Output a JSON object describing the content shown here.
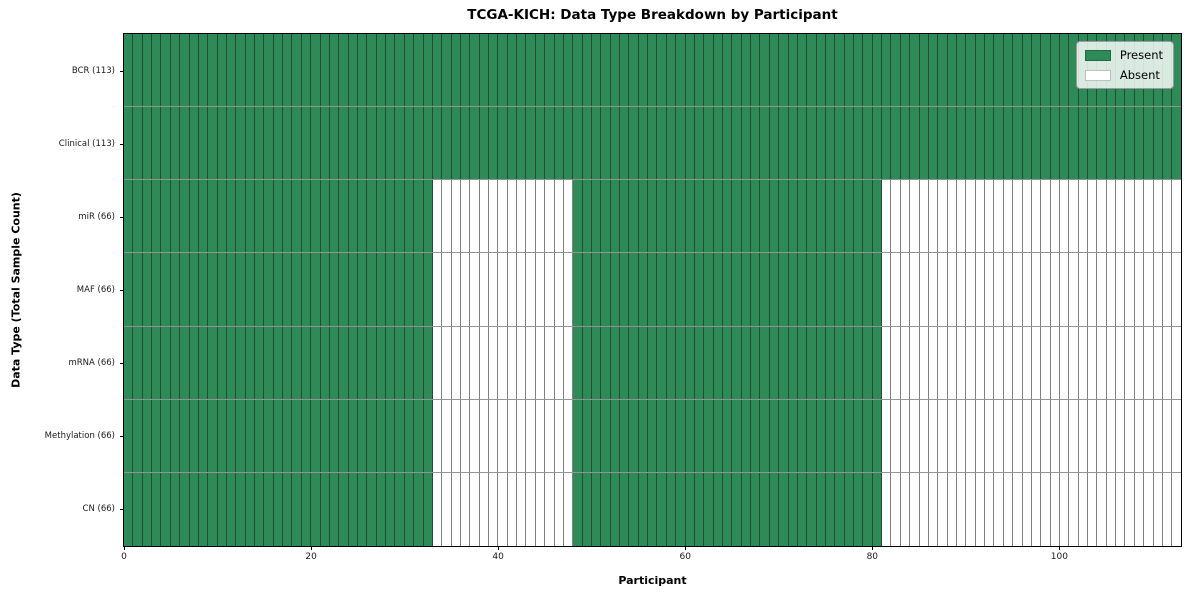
{
  "chart_data": {
    "type": "heatmap",
    "title": "TCGA-KICH: Data Type Breakdown by Participant",
    "xlabel": "Participant",
    "ylabel": "Data Type (Total Sample Count)",
    "x_ticks": [
      0,
      20,
      40,
      60,
      80,
      100
    ],
    "x_range": [
      0,
      113
    ],
    "n_participants": 113,
    "grid": false,
    "legend_position": "upper right",
    "legend": [
      {
        "label": "Present",
        "color": "#2e8b57"
      },
      {
        "label": "Absent",
        "color": "#ffffff"
      }
    ],
    "colors": {
      "present": "#2e8b57",
      "absent": "#ffffff",
      "background": "#ffffff",
      "axis": "#000000"
    },
    "rows": [
      {
        "label": "BCR (113)",
        "data_type": "BCR",
        "total_samples": 113,
        "present_ranges": [
          [
            0,
            113
          ]
        ]
      },
      {
        "label": "Clinical (113)",
        "data_type": "Clinical",
        "total_samples": 113,
        "present_ranges": [
          [
            0,
            113
          ]
        ]
      },
      {
        "label": "miR (66)",
        "data_type": "miR",
        "total_samples": 66,
        "present_ranges": [
          [
            0,
            33
          ],
          [
            48,
            81
          ]
        ]
      },
      {
        "label": "MAF (66)",
        "data_type": "MAF",
        "total_samples": 66,
        "present_ranges": [
          [
            0,
            33
          ],
          [
            48,
            81
          ]
        ]
      },
      {
        "label": "mRNA (66)",
        "data_type": "mRNA",
        "total_samples": 66,
        "present_ranges": [
          [
            0,
            33
          ],
          [
            48,
            81
          ]
        ]
      },
      {
        "label": "Methylation (66)",
        "data_type": "Methylation",
        "total_samples": 66,
        "present_ranges": [
          [
            0,
            33
          ],
          [
            48,
            81
          ]
        ]
      },
      {
        "label": "CN (66)",
        "data_type": "CN",
        "total_samples": 66,
        "present_ranges": [
          [
            0,
            33
          ],
          [
            48,
            81
          ]
        ]
      }
    ]
  }
}
